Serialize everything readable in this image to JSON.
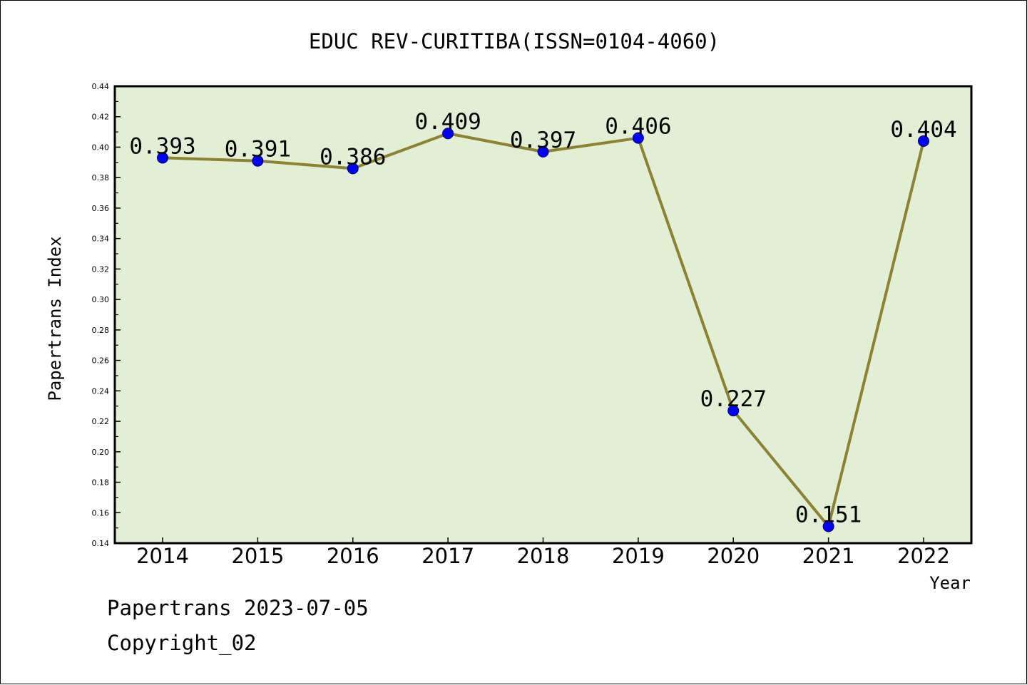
{
  "chart_data": {
    "type": "line",
    "title": "EDUC REV-CURITIBA(ISSN=0104-4060)",
    "xlabel": "Year",
    "ylabel": "Papertrans Index",
    "categories": [
      "2014",
      "2015",
      "2016",
      "2017",
      "2018",
      "2019",
      "2020",
      "2021",
      "2022"
    ],
    "series": [
      {
        "values": [
          0.393,
          0.391,
          0.386,
          0.409,
          0.397,
          0.406,
          0.227,
          0.151,
          0.404
        ],
        "labels": [
          "0.393",
          "0.391",
          "0.386",
          "0.409",
          "0.397",
          "0.406",
          "0.227",
          "0.151",
          "0.404"
        ]
      }
    ],
    "ylim": [
      0.14,
      0.44
    ],
    "yticks": [
      "0.14",
      "0.16",
      "0.18",
      "0.20",
      "0.22",
      "0.24",
      "0.26",
      "0.28",
      "0.30",
      "0.32",
      "0.34",
      "0.36",
      "0.38",
      "0.40",
      "0.42",
      "0.44"
    ],
    "grid": false,
    "legend": "none",
    "colors": {
      "plot_background": "#e2efd5",
      "line": "#8b8232",
      "marker": "#0000ff",
      "axis": "#000000"
    }
  },
  "footer": {
    "date_text": "Papertrans 2023-07-05",
    "copyright_text": "Copyright_02"
  }
}
